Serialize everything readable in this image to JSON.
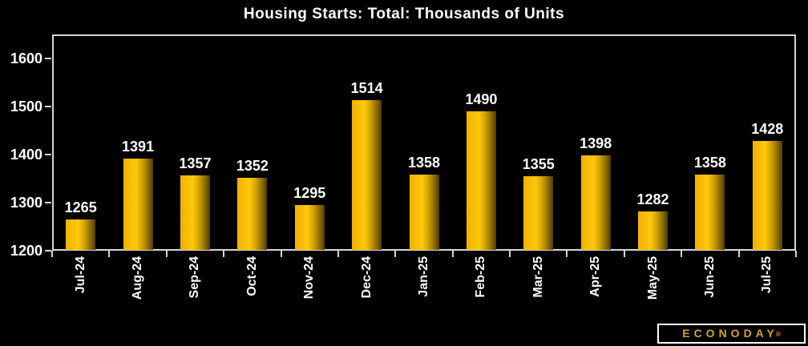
{
  "title": "Housing Starts: Total: Thousands of Units",
  "chart_data": {
    "type": "bar",
    "title": "Housing Starts: Total: Thousands of Units",
    "categories": [
      "Jul-24",
      "Aug-24",
      "Sep-24",
      "Oct-24",
      "Nov-24",
      "Dec-24",
      "Jan-25",
      "Feb-25",
      "Mar-25",
      "Apr-25",
      "May-25",
      "Jun-25",
      "Jul-25"
    ],
    "values": [
      1265,
      1391,
      1357,
      1352,
      1295,
      1514,
      1358,
      1490,
      1355,
      1398,
      1282,
      1358,
      1428
    ],
    "xlabel": "",
    "ylabel": "",
    "ylim": [
      1200,
      1650
    ],
    "yticks": [
      1200,
      1300,
      1400,
      1500,
      1600
    ],
    "grid": false,
    "legend": false,
    "bar_value_labels": true
  },
  "colors": {
    "background": "#000000",
    "text": "#ffffff",
    "axis_frame": "#d6d6d6",
    "bar_gold_light": "#ffc80d",
    "bar_gold_dark": "#4e3b00",
    "logo_text": "#d2a42a",
    "logo_border": "#ffffff"
  },
  "logo": {
    "text": "ECONODAY",
    "registered": "®"
  }
}
